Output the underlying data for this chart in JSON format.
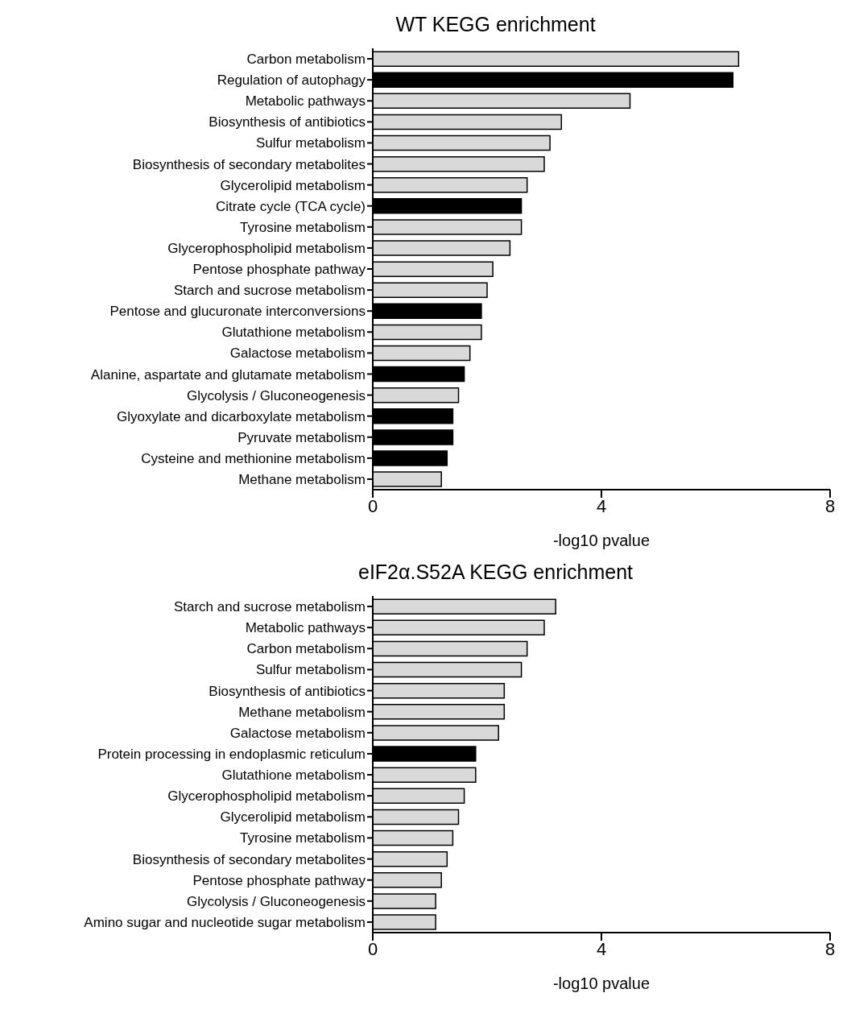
{
  "chart_data": [
    {
      "type": "bar",
      "orientation": "horizontal",
      "title": "WT KEGG enrichment",
      "xlabel": "-log10 pvalue",
      "categories": [
        "Carbon metabolism",
        "Regulation of autophagy",
        "Metabolic pathways",
        "Biosynthesis of antibiotics",
        "Sulfur metabolism",
        "Biosynthesis of secondary metabolites",
        "Glycerolipid metabolism",
        "Citrate cycle (TCA cycle)",
        "Tyrosine metabolism",
        "Glycerophospholipid metabolism",
        "Pentose phosphate pathway",
        "Starch and sucrose metabolism",
        "Pentose and glucuronate interconversions",
        "Glutathione metabolism",
        "Galactose metabolism",
        "Alanine, aspartate and glutamate metabolism",
        "Glycolysis / Gluconeogenesis",
        "Glyoxylate and dicarboxylate metabolism",
        "Pyruvate metabolism",
        "Cysteine and methionine metabolism",
        "Methane metabolism"
      ],
      "values": [
        6.4,
        6.3,
        4.5,
        3.3,
        3.1,
        3.0,
        2.7,
        2.6,
        2.6,
        2.4,
        2.1,
        2.0,
        1.9,
        1.9,
        1.7,
        1.6,
        1.5,
        1.4,
        1.4,
        1.3,
        1.2
      ],
      "colors": [
        "#d9d9d9",
        "#000000",
        "#d9d9d9",
        "#d9d9d9",
        "#d9d9d9",
        "#d9d9d9",
        "#d9d9d9",
        "#000000",
        "#d9d9d9",
        "#d9d9d9",
        "#d9d9d9",
        "#d9d9d9",
        "#000000",
        "#d9d9d9",
        "#d9d9d9",
        "#000000",
        "#d9d9d9",
        "#000000",
        "#000000",
        "#000000",
        "#d9d9d9"
      ],
      "xlim": [
        0,
        8
      ],
      "xticks": [
        0,
        4,
        8
      ]
    },
    {
      "type": "bar",
      "orientation": "horizontal",
      "title": "eIF2α.S52A KEGG enrichment",
      "xlabel": "-log10 pvalue",
      "categories": [
        "Starch and sucrose metabolism",
        "Metabolic pathways",
        "Carbon metabolism",
        "Sulfur metabolism",
        "Biosynthesis of antibiotics",
        "Methane metabolism",
        "Galactose metabolism",
        "Protein processing in endoplasmic reticulum",
        "Glutathione metabolism",
        "Glycerophospholipid metabolism",
        "Glycerolipid metabolism",
        "Tyrosine metabolism",
        "Biosynthesis of secondary metabolites",
        "Pentose phosphate pathway",
        "Glycolysis / Gluconeogenesis",
        "Amino sugar and nucleotide sugar metabolism"
      ],
      "values": [
        3.2,
        3.0,
        2.7,
        2.6,
        2.3,
        2.3,
        2.2,
        1.8,
        1.8,
        1.6,
        1.5,
        1.4,
        1.3,
        1.2,
        1.1,
        1.1
      ],
      "colors": [
        "#d9d9d9",
        "#d9d9d9",
        "#d9d9d9",
        "#d9d9d9",
        "#d9d9d9",
        "#d9d9d9",
        "#d9d9d9",
        "#000000",
        "#d9d9d9",
        "#d9d9d9",
        "#d9d9d9",
        "#d9d9d9",
        "#d9d9d9",
        "#d9d9d9",
        "#d9d9d9",
        "#d9d9d9"
      ],
      "xlim": [
        0,
        8
      ],
      "xticks": [
        0,
        4,
        8
      ]
    }
  ]
}
